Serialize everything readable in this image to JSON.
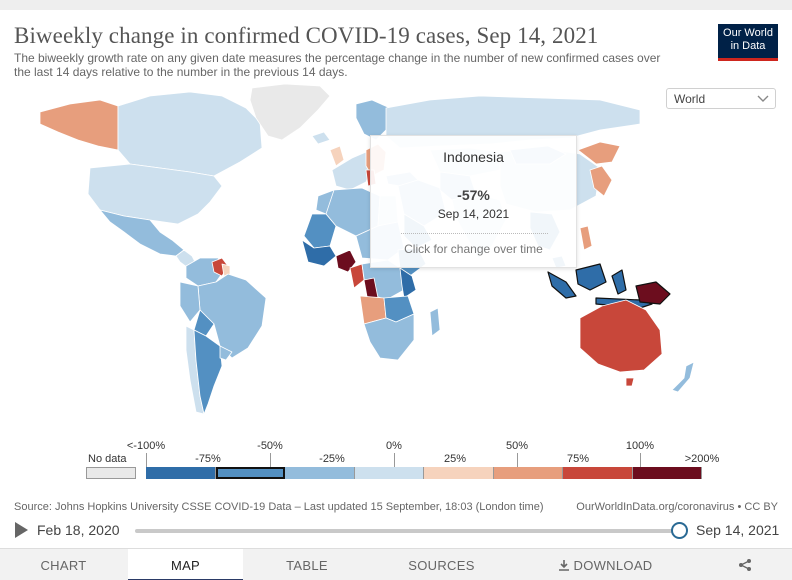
{
  "header": {
    "title": "Biweekly change in confirmed COVID-19 cases, Sep 14, 2021",
    "subtitle": "The biweekly growth rate on any given date measures the percentage change in the number of new confirmed cases over the last 14 days relative to the number in the previous 14 days.",
    "logo_line1": "Our World",
    "logo_line2": "in Data"
  },
  "region_select": {
    "value": "World",
    "icon": "chevron-down-icon"
  },
  "tooltip": {
    "country": "Indonesia",
    "value": "-57%",
    "date": "Sep 14, 2021",
    "hint": "Click for change over time"
  },
  "legend": {
    "no_data_label": "No data",
    "top_labels": [
      "<-100%",
      "-50%",
      "0%",
      "50%",
      "100%"
    ],
    "bottom_labels": [
      "-75%",
      "-25%",
      "25%",
      "75%",
      ">200%"
    ],
    "bins": [
      {
        "color": "#2f6da8"
      },
      {
        "color": "#5390c2",
        "selected": true
      },
      {
        "color": "#93bcdc"
      },
      {
        "color": "#cde0ee"
      },
      {
        "color": "#f6d3bd"
      },
      {
        "color": "#e79e7d"
      },
      {
        "color": "#c8473a"
      },
      {
        "color": "#6c0d1e"
      }
    ],
    "no_data_color": "#e9e9e9"
  },
  "footer": {
    "source": "Source: Johns Hopkins University CSSE COVID-19 Data – Last updated 15 September, 18:03 (London time)",
    "url": "OurWorldInData.org/coronavirus • CC BY"
  },
  "timeline": {
    "start_date": "Feb 18, 2020",
    "end_date": "Sep 14, 2021",
    "progress": 1.0,
    "play_icon": "play-icon"
  },
  "tabs": [
    {
      "label": "CHART",
      "active": false
    },
    {
      "label": "MAP",
      "active": true
    },
    {
      "label": "TABLE",
      "active": false
    },
    {
      "label": "SOURCES",
      "active": false
    },
    {
      "label": "DOWNLOAD",
      "active": false,
      "icon": "download-icon"
    },
    {
      "label": "",
      "active": false,
      "icon": "share-icon"
    }
  ]
}
